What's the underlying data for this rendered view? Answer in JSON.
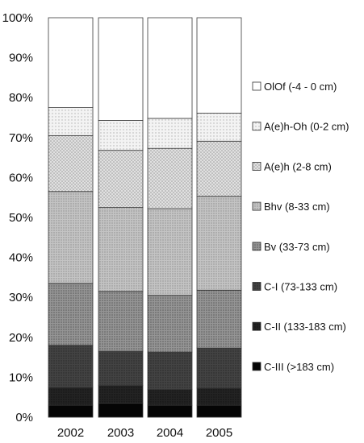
{
  "chart_data": {
    "type": "bar",
    "stacked": "percent",
    "categories": [
      "2002",
      "2003",
      "2004",
      "2005"
    ],
    "ylim": [
      0,
      100
    ],
    "y_ticks": [
      "0%",
      "10%",
      "20%",
      "30%",
      "40%",
      "50%",
      "60%",
      "70%",
      "80%",
      "90%",
      "100%"
    ],
    "legend_placement": "right",
    "series": [
      {
        "name": "C-III (>183 cm)",
        "values": [
          3.0,
          3.5,
          3.0,
          3.0
        ],
        "color": "#050505"
      },
      {
        "name": "C-II (133-183 cm)",
        "values": [
          4.5,
          4.5,
          4.0,
          4.3
        ],
        "color": "#1e1e1e"
      },
      {
        "name": "C-I (73-133 cm)",
        "values": [
          10.5,
          8.5,
          9.3,
          10.0
        ],
        "color": "#3f3f3f"
      },
      {
        "name": "Bv (33-73 cm)",
        "values": [
          15.5,
          15.0,
          14.2,
          14.5
        ],
        "color": "#8f8f8f"
      },
      {
        "name": "Bhv (8-33 cm)",
        "values": [
          23.0,
          21.0,
          21.7,
          23.5
        ],
        "color": "#bdbdbd"
      },
      {
        "name": "A(e)h (2-8 cm)",
        "values": [
          14.0,
          14.3,
          15.1,
          13.8
        ],
        "color": "#e3e3e3"
      },
      {
        "name": "A(e)h-Oh (0-2 cm)",
        "values": [
          7.0,
          7.5,
          7.5,
          7.0
        ],
        "color": "#f1f1f1"
      },
      {
        "name": "OlOf (-4 - 0 cm)",
        "values": [
          22.5,
          25.7,
          25.2,
          23.9
        ],
        "color": "#ffffff"
      }
    ]
  }
}
